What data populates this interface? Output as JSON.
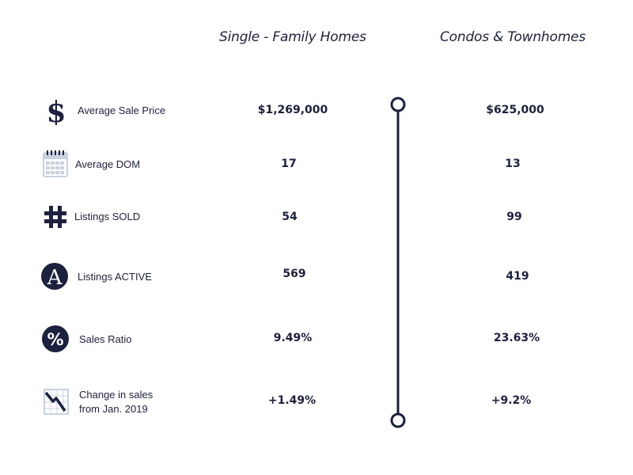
{
  "headers": {
    "single_family": "Single - Family Homes",
    "condos": "Condos & Townhomes"
  },
  "rows": [
    {
      "icon": "dollar-icon",
      "label": "Average Sale Price",
      "single_family": "$1,269,000",
      "condos": "$625,000"
    },
    {
      "icon": "calendar-icon",
      "label": "Average DOM",
      "single_family": "17",
      "condos": "13"
    },
    {
      "icon": "hashtag-icon",
      "label": "Listings SOLD",
      "single_family": "54",
      "condos": "99"
    },
    {
      "icon": "letter-a-icon",
      "label": "Listings ACTIVE",
      "single_family": "569",
      "condos": "419"
    },
    {
      "icon": "percent-icon",
      "label": "Sales Ratio",
      "single_family": "9.49%",
      "condos": "23.63%"
    },
    {
      "icon": "trend-down-icon",
      "label_line1": "Change in sales",
      "label_line2": "from Jan. 2019",
      "single_family": "+1.49%",
      "condos": "+9.2%"
    }
  ],
  "colors": {
    "text": "#1d2140",
    "calendar": "#c9d2df"
  }
}
